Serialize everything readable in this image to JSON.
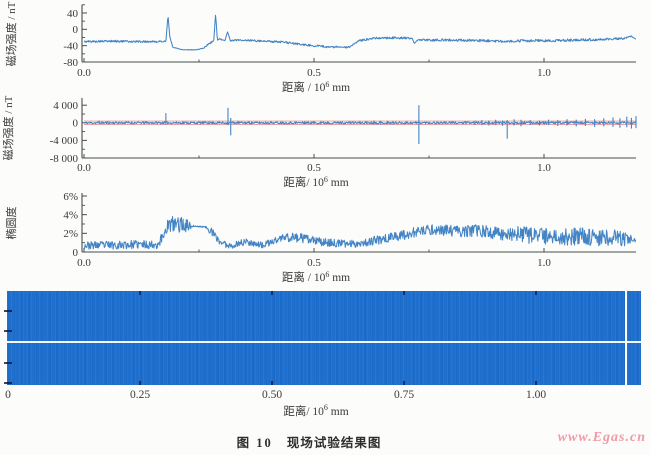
{
  "figure": {
    "caption_label": "图 10",
    "caption_text": "现场试验结果图",
    "watermark": "www.Egas.cn"
  },
  "colors": {
    "line_blue": "#4384c4",
    "band_blue": "#1e6fce",
    "threshold_red": "#e89898",
    "axis": "#474f4a",
    "text": "#3a3a3a",
    "watermark_pink": "#f09aa6"
  },
  "chart_data": [
    {
      "name": "magnetic-field-strength-profile",
      "type": "line",
      "ylabel": "磁场强度 / nT",
      "xlabel_prefix": "距离 / 10",
      "xlabel_sup": "6",
      "xlabel_unit": " mm",
      "yticks": [
        {
          "v": 40,
          "label": "40"
        },
        {
          "v": 0,
          "label": "0"
        },
        {
          "v": -40,
          "label": "-40"
        },
        {
          "v": -80,
          "label": "-80"
        }
      ],
      "xticks": [
        {
          "v": 0,
          "label": "0.0"
        },
        {
          "v": 0.5,
          "label": "0.5"
        },
        {
          "v": 1.0,
          "label": "1.0"
        }
      ],
      "xlim": [
        0,
        1.2
      ],
      "ylim": [
        -80,
        60
      ],
      "grid": false,
      "noise_seed": 5,
      "anchors": [
        [
          0.0,
          -30,
          2.5
        ],
        [
          0.06,
          -29,
          2.5
        ],
        [
          0.12,
          -30,
          2.5
        ],
        [
          0.165,
          -30,
          2.2
        ],
        [
          0.178,
          -29,
          1.0
        ],
        [
          0.1825,
          34,
          0.2
        ],
        [
          0.1865,
          -18,
          0.5
        ],
        [
          0.193,
          -44,
          1.0
        ],
        [
          0.215,
          -50,
          0.7
        ],
        [
          0.245,
          -50,
          0.7
        ],
        [
          0.26,
          -46,
          1.2
        ],
        [
          0.272,
          -35,
          2.0
        ],
        [
          0.282,
          -28,
          2.0
        ],
        [
          0.286,
          38,
          0.2
        ],
        [
          0.29,
          -26,
          1.5
        ],
        [
          0.298,
          -24,
          2.0
        ],
        [
          0.306,
          -28,
          1.2
        ],
        [
          0.312,
          -6,
          0.3
        ],
        [
          0.318,
          -28,
          1.2
        ],
        [
          0.335,
          -26,
          2.5
        ],
        [
          0.38,
          -28,
          2.5
        ],
        [
          0.43,
          -31,
          2.5
        ],
        [
          0.48,
          -38,
          2.5
        ],
        [
          0.53,
          -43,
          2.5
        ],
        [
          0.575,
          -44,
          2.2
        ],
        [
          0.6,
          -28,
          2.8
        ],
        [
          0.63,
          -21,
          2.8
        ],
        [
          0.67,
          -21,
          2.8
        ],
        [
          0.7,
          -21,
          2.5
        ],
        [
          0.714,
          -23,
          1.5
        ],
        [
          0.718,
          -35,
          0.3
        ],
        [
          0.724,
          -26,
          2.2
        ],
        [
          0.77,
          -26,
          3.0
        ],
        [
          0.83,
          -27,
          3.0
        ],
        [
          0.9,
          -29,
          3.2
        ],
        [
          0.97,
          -28,
          3.2
        ],
        [
          1.03,
          -27,
          3.2
        ],
        [
          1.09,
          -26,
          3.2
        ],
        [
          1.14,
          -24,
          3.0
        ],
        [
          1.175,
          -22,
          2.6
        ],
        [
          1.19,
          -17,
          1.5
        ],
        [
          1.2,
          -24,
          1.5
        ]
      ]
    },
    {
      "name": "magnetic-field-strength-anomalies",
      "type": "line",
      "ylabel": "磁场强度 / nT",
      "xlabel_prefix": "距离/ 10",
      "xlabel_sup": "6",
      "xlabel_unit": " mm",
      "yticks": [
        {
          "v": 4000,
          "label": "4 000"
        },
        {
          "v": 0,
          "label": "0"
        },
        {
          "v": -4000,
          "label": "-4 000"
        },
        {
          "v": -8000,
          "label": "-8 000"
        }
      ],
      "xticks": [
        {
          "v": 0,
          "label": "0.0"
        },
        {
          "v": 0.5,
          "label": "0.5"
        },
        {
          "v": 1.0,
          "label": "1.0"
        }
      ],
      "xlim": [
        0,
        1.2
      ],
      "ylim": [
        -8000,
        5600
      ],
      "grid": false,
      "noise_seed": 11,
      "threshold_lines": [
        400,
        -400
      ],
      "anchors": [
        [
          0.0,
          0,
          250
        ],
        [
          1.2,
          0,
          250
        ]
      ],
      "spikes": [
        [
          0.033,
          500,
          -250
        ],
        [
          0.052,
          350,
          -200
        ],
        [
          0.09,
          250,
          -200
        ],
        [
          0.13,
          300,
          -250
        ],
        [
          0.178,
          2200,
          -400
        ],
        [
          0.24,
          250,
          -200
        ],
        [
          0.27,
          300,
          -250
        ],
        [
          0.313,
          3400,
          -550
        ],
        [
          0.319,
          1100,
          -2850
        ],
        [
          0.36,
          250,
          -200
        ],
        [
          0.4,
          220,
          -200
        ],
        [
          0.43,
          280,
          -220
        ],
        [
          0.46,
          240,
          -280
        ],
        [
          0.48,
          380,
          -260
        ],
        [
          0.5,
          320,
          -220
        ],
        [
          0.515,
          420,
          -320
        ],
        [
          0.53,
          360,
          -260
        ],
        [
          0.58,
          320,
          -220
        ],
        [
          0.6,
          260,
          -260
        ],
        [
          0.615,
          420,
          -320
        ],
        [
          0.63,
          520,
          -360
        ],
        [
          0.645,
          460,
          -420
        ],
        [
          0.66,
          420,
          -320
        ],
        [
          0.672,
          360,
          -420
        ],
        [
          0.7,
          320,
          -260
        ],
        [
          0.728,
          4000,
          -4800
        ],
        [
          0.75,
          260,
          -220
        ],
        [
          0.77,
          220,
          -260
        ],
        [
          0.8,
          360,
          -300
        ],
        [
          0.83,
          420,
          -320
        ],
        [
          0.85,
          520,
          -420
        ],
        [
          0.865,
          620,
          -520
        ],
        [
          0.88,
          520,
          -620
        ],
        [
          0.895,
          700,
          -520
        ],
        [
          0.91,
          520,
          -700
        ],
        [
          0.92,
          600,
          -3600
        ],
        [
          0.935,
          800,
          -600
        ],
        [
          0.95,
          700,
          -800
        ],
        [
          0.97,
          620,
          -520
        ],
        [
          0.99,
          520,
          -620
        ],
        [
          1.01,
          720,
          -520
        ],
        [
          1.03,
          620,
          -720
        ],
        [
          1.05,
          820,
          -620
        ],
        [
          1.07,
          720,
          -820
        ],
        [
          1.09,
          920,
          -720
        ],
        [
          1.11,
          820,
          -920
        ],
        [
          1.13,
          1020,
          -820
        ],
        [
          1.15,
          1220,
          -920
        ],
        [
          1.165,
          1020,
          -1120
        ],
        [
          1.18,
          1420,
          -1020
        ],
        [
          1.19,
          1120,
          -1320
        ],
        [
          1.2,
          1520,
          -1220
        ]
      ]
    },
    {
      "name": "ellipticity-profile",
      "type": "line",
      "ylabel": "椭圆度",
      "xlabel_prefix": "距离 / 10",
      "xlabel_sup": "6",
      "xlabel_unit": " mm",
      "yticks": [
        {
          "v": 6,
          "label": "6%"
        },
        {
          "v": 4,
          "label": "4%"
        },
        {
          "v": 2,
          "label": "2%"
        },
        {
          "v": 0,
          "label": "0"
        }
      ],
      "xticks": [
        {
          "v": 0,
          "label": "0.0"
        },
        {
          "v": 0.5,
          "label": "0.5"
        },
        {
          "v": 1.0,
          "label": "1.0"
        }
      ],
      "xlim": [
        0,
        1.2
      ],
      "ylim": [
        0,
        6.3
      ],
      "grid": false,
      "noise_seed": 23,
      "clamp_min": 0.05,
      "anchors": [
        [
          0.0,
          0.7,
          0.4
        ],
        [
          0.06,
          0.75,
          0.45
        ],
        [
          0.12,
          0.8,
          0.45
        ],
        [
          0.16,
          0.8,
          0.45
        ],
        [
          0.17,
          1.5,
          0.7
        ],
        [
          0.18,
          2.8,
          0.9
        ],
        [
          0.2,
          3.0,
          0.9
        ],
        [
          0.22,
          2.9,
          0.8
        ],
        [
          0.232,
          2.8,
          0.4
        ],
        [
          0.24,
          2.75,
          0.07
        ],
        [
          0.26,
          2.7,
          0.07
        ],
        [
          0.268,
          2.6,
          0.15
        ],
        [
          0.276,
          2.2,
          0.5
        ],
        [
          0.286,
          1.6,
          0.5
        ],
        [
          0.296,
          1.1,
          0.4
        ],
        [
          0.31,
          0.75,
          0.32
        ],
        [
          0.325,
          0.7,
          0.3
        ],
        [
          0.34,
          1.0,
          0.4
        ],
        [
          0.36,
          1.1,
          0.42
        ],
        [
          0.375,
          0.85,
          0.35
        ],
        [
          0.39,
          0.7,
          0.32
        ],
        [
          0.41,
          1.1,
          0.45
        ],
        [
          0.43,
          1.5,
          0.5
        ],
        [
          0.45,
          1.6,
          0.5
        ],
        [
          0.47,
          1.5,
          0.5
        ],
        [
          0.5,
          1.2,
          0.45
        ],
        [
          0.53,
          1.0,
          0.42
        ],
        [
          0.56,
          0.9,
          0.4
        ],
        [
          0.59,
          0.9,
          0.4
        ],
        [
          0.62,
          1.1,
          0.45
        ],
        [
          0.66,
          1.5,
          0.5
        ],
        [
          0.7,
          1.9,
          0.55
        ],
        [
          0.73,
          2.2,
          0.55
        ],
        [
          0.76,
          2.4,
          0.55
        ],
        [
          0.79,
          2.3,
          0.6
        ],
        [
          0.82,
          2.2,
          0.6
        ],
        [
          0.85,
          2.3,
          0.65
        ],
        [
          0.88,
          2.1,
          0.7
        ],
        [
          0.91,
          2.0,
          0.8
        ],
        [
          0.94,
          1.9,
          0.85
        ],
        [
          0.97,
          1.8,
          0.9
        ],
        [
          1.0,
          1.7,
          0.9
        ],
        [
          1.04,
          1.6,
          0.95
        ],
        [
          1.08,
          1.7,
          0.95
        ],
        [
          1.12,
          1.6,
          0.95
        ],
        [
          1.16,
          1.5,
          0.9
        ],
        [
          1.19,
          1.3,
          0.6
        ],
        [
          1.2,
          1.1,
          0.3
        ]
      ]
    },
    {
      "name": "bscan-band-image",
      "type": "heatmap",
      "xlabel_prefix": "距离/ 10",
      "xlabel_sup": "6",
      "xlabel_unit": " mm",
      "xticks": [
        {
          "v": 0,
          "label": "0"
        },
        {
          "v": 0.25,
          "label": "0.25"
        },
        {
          "v": 0.5,
          "label": "0.50"
        },
        {
          "v": 0.75,
          "label": "0.75"
        },
        {
          "v": 1.0,
          "label": "1.00"
        }
      ],
      "xlim": [
        0,
        1.199
      ],
      "fill_color": "#1e6fce",
      "white_hline_frac": 0.54,
      "white_vline_x": 1.168,
      "note": "uniform blue scan band with white horizontal centre line and white vertical marker near right edge"
    }
  ]
}
